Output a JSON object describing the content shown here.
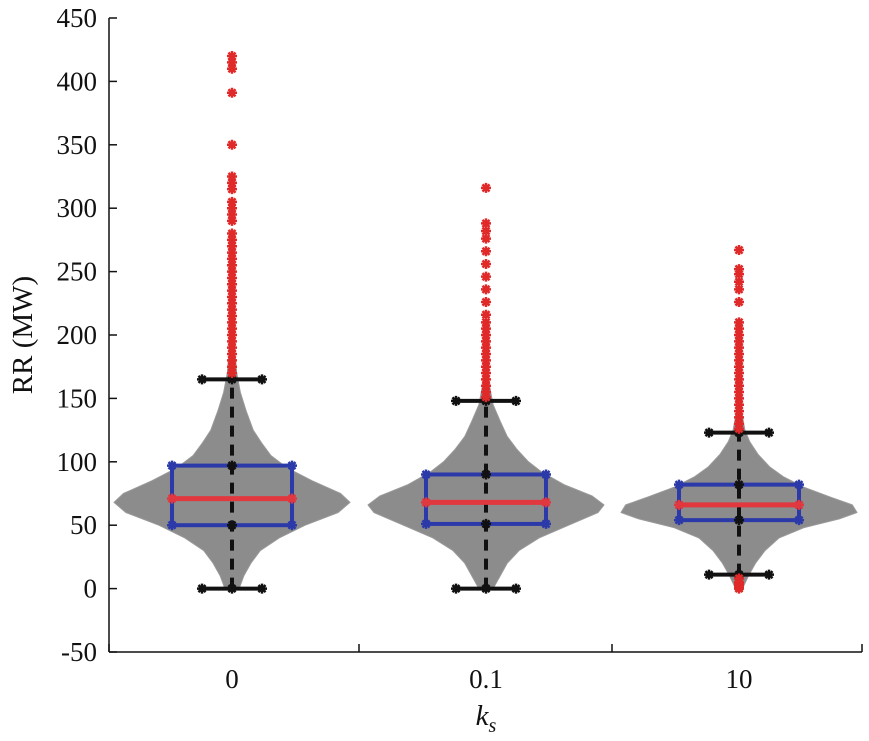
{
  "chart_data": {
    "type": "violin",
    "xlabel": "k",
    "xlabel_sub": "s",
    "ylabel": "RR (MW)",
    "ylim": [
      -50,
      450
    ],
    "yticks": [
      -50,
      0,
      50,
      100,
      150,
      200,
      250,
      300,
      350,
      400,
      450
    ],
    "ytick_labels": [
      "-50",
      "0",
      "50",
      "100",
      "150",
      "200",
      "250",
      "300",
      "350",
      "400",
      "450"
    ],
    "categories": [
      "0",
      "0.1",
      "10"
    ],
    "colors": {
      "violin": "#8c8c8c",
      "box": "#2b3aa8",
      "median": "#e0383e",
      "whisker": "#111111",
      "outlier": "#e02a2a"
    },
    "groups": [
      {
        "label": "0",
        "median": 71,
        "q1": 50,
        "q3": 97,
        "whisker_low": 0,
        "whisker_high": 165,
        "min": 0,
        "max": 420,
        "outliers": [
          420,
          415,
          410,
          391,
          350,
          325,
          320,
          315,
          305,
          300,
          295,
          290,
          280,
          275,
          270,
          265,
          260,
          255,
          250,
          245,
          240,
          235,
          230,
          225,
          220,
          215,
          210,
          205,
          200,
          195,
          190,
          185,
          180,
          175,
          170
        ],
        "density_profile": [
          [
            0,
            0.06
          ],
          [
            10,
            0.1
          ],
          [
            20,
            0.16
          ],
          [
            30,
            0.24
          ],
          [
            40,
            0.4
          ],
          [
            50,
            0.62
          ],
          [
            60,
            0.9
          ],
          [
            68,
            1.0
          ],
          [
            75,
            0.92
          ],
          [
            85,
            0.68
          ],
          [
            95,
            0.47
          ],
          [
            105,
            0.33
          ],
          [
            115,
            0.25
          ],
          [
            125,
            0.18
          ],
          [
            140,
            0.12
          ],
          [
            155,
            0.07
          ],
          [
            170,
            0.04
          ],
          [
            190,
            0.02
          ],
          [
            210,
            0.0
          ]
        ]
      },
      {
        "label": "0.1",
        "median": 68,
        "q1": 51,
        "q3": 90,
        "whisker_low": 0,
        "whisker_high": 148,
        "min": 0,
        "max": 316,
        "outliers": [
          316,
          288,
          282,
          276,
          266,
          256,
          246,
          236,
          226,
          216,
          210,
          205,
          200,
          195,
          190,
          185,
          180,
          175,
          170,
          165,
          160,
          155,
          151
        ],
        "density_profile": [
          [
            0,
            0.06
          ],
          [
            10,
            0.12
          ],
          [
            20,
            0.18
          ],
          [
            30,
            0.28
          ],
          [
            40,
            0.45
          ],
          [
            50,
            0.7
          ],
          [
            60,
            0.95
          ],
          [
            66,
            1.0
          ],
          [
            73,
            0.9
          ],
          [
            82,
            0.66
          ],
          [
            92,
            0.47
          ],
          [
            100,
            0.36
          ],
          [
            110,
            0.26
          ],
          [
            120,
            0.18
          ],
          [
            132,
            0.12
          ],
          [
            145,
            0.06
          ],
          [
            160,
            0.03
          ],
          [
            180,
            0.0
          ]
        ]
      },
      {
        "label": "10",
        "median": 66,
        "q1": 54,
        "q3": 82,
        "whisker_low": 11,
        "whisker_high": 123,
        "min": 0,
        "max": 267,
        "outliers": [
          267,
          252,
          248,
          242,
          236,
          226,
          210,
          205,
          200,
          195,
          190,
          185,
          180,
          175,
          170,
          165,
          160,
          155,
          150,
          145,
          140,
          135,
          130,
          126,
          8,
          5,
          3,
          1,
          0
        ],
        "density_profile": [
          [
            0,
            0.03
          ],
          [
            10,
            0.08
          ],
          [
            20,
            0.14
          ],
          [
            30,
            0.22
          ],
          [
            40,
            0.34
          ],
          [
            48,
            0.55
          ],
          [
            55,
            0.85
          ],
          [
            60,
            1.0
          ],
          [
            66,
            0.96
          ],
          [
            72,
            0.78
          ],
          [
            80,
            0.55
          ],
          [
            88,
            0.38
          ],
          [
            96,
            0.26
          ],
          [
            106,
            0.16
          ],
          [
            116,
            0.09
          ],
          [
            125,
            0.05
          ],
          [
            140,
            0.02
          ],
          [
            155,
            0.0
          ]
        ]
      }
    ]
  }
}
